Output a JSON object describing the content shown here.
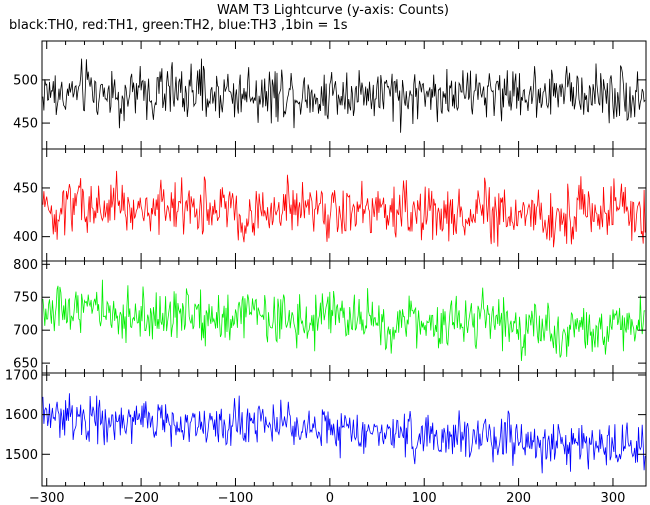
{
  "chart_data": {
    "type": "line",
    "title": "WAM T3 Lightcurve (y-axis: Counts)",
    "subtitle": "black:TH0, red:TH1, green:TH2, blue:TH3 ,1bin = 1s",
    "xlim": [
      -305,
      335
    ],
    "x_ticks": [
      -300,
      -200,
      -100,
      0,
      100,
      200,
      300
    ],
    "x_tick_labels": [
      "−300",
      "−200",
      "−100",
      "0",
      "100",
      "200",
      "300"
    ],
    "bin_seconds": 1,
    "grid": false,
    "panels": [
      {
        "series": "TH0",
        "color": "#000000",
        "ylim": [
          420,
          545
        ],
        "y_ticks": [
          450,
          500
        ],
        "y_tick_labels": [
          "450",
          "500"
        ],
        "mean": 485,
        "noise": 22,
        "trend": 0
      },
      {
        "series": "TH1",
        "color": "#ff0000",
        "ylim": [
          375,
          490
        ],
        "y_ticks": [
          400,
          450
        ],
        "y_tick_labels": [
          "400",
          "450"
        ],
        "mean": 425,
        "noise": 20,
        "trend": -6
      },
      {
        "series": "TH2",
        "color": "#00ee00",
        "ylim": [
          635,
          805
        ],
        "y_ticks": [
          650,
          700,
          750,
          800
        ],
        "y_tick_labels": [
          "650",
          "700",
          "750",
          "800"
        ],
        "mean": 715,
        "noise": 27,
        "trend": -28
      },
      {
        "series": "TH3",
        "color": "#0000ff",
        "ylim": [
          1420,
          1705
        ],
        "y_ticks": [
          1500,
          1600,
          1700
        ],
        "y_tick_labels": [
          "1500",
          "1600",
          "1700"
        ],
        "mean": 1560,
        "noise": 40,
        "trend": -80
      }
    ]
  }
}
